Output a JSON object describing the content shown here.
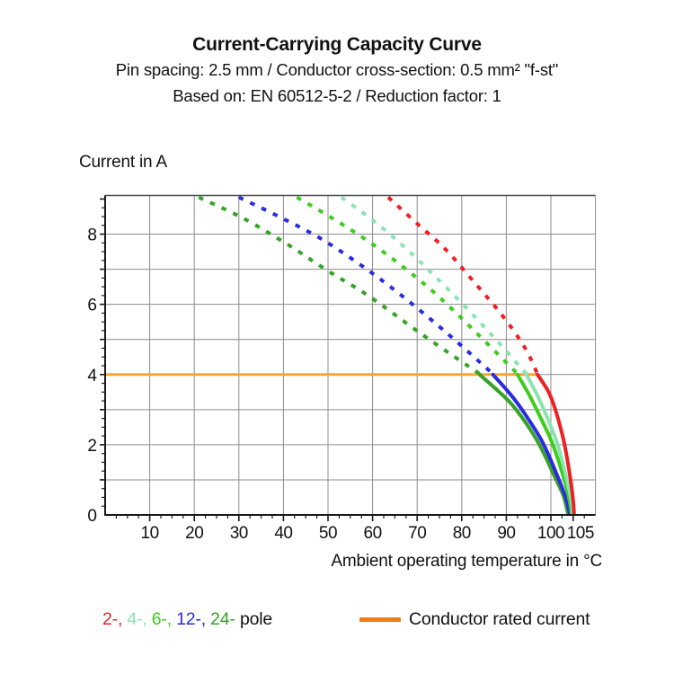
{
  "title": {
    "line1": "Current-Carrying Capacity Curve",
    "line2": "Pin spacing: 2.5 mm / Conductor cross-section: 0.5 mm² \"f-st\"",
    "line3": "Based on: EN 60512-5-2 / Reduction factor: 1"
  },
  "legend": {
    "poles": [
      {
        "label": "2-",
        "color": "#ED2024"
      },
      {
        "label": "4-",
        "color": "#8BE3B2"
      },
      {
        "label": "6-",
        "color": "#3ECC1F"
      },
      {
        "label": "12-",
        "color": "#2B2BE0"
      },
      {
        "label": "24-",
        "color": "#36A228"
      }
    ],
    "separator": ", ",
    "suffix": " pole",
    "rated_label": "Conductor rated current",
    "rated_swatch_color": "#EE7D1A"
  },
  "chart_data": {
    "type": "line",
    "title": "Current-Carrying Capacity Curve",
    "xlabel": "Ambient operating temperature in °C",
    "ylabel": "Current in A",
    "xlim": [
      0,
      110
    ],
    "ylim": [
      0,
      9.1
    ],
    "grid": true,
    "grid_color": "#8C8C8C",
    "axis_color": "#1A1A1A",
    "x_major_ticks": [
      10,
      20,
      30,
      40,
      50,
      60,
      70,
      80,
      90,
      100,
      105
    ],
    "x_minor_step": 2.5,
    "x_gridline_step": 10,
    "y_labeled_ticks": [
      0,
      2,
      4,
      6,
      8
    ],
    "y_minor_step": 0.25,
    "y_gridline_step": 1,
    "rated_line": {
      "y": 4,
      "x_start": 0,
      "x_end": 97,
      "color": "#FCA42D",
      "name": "Conductor rated current"
    },
    "series": [
      {
        "name": "24-pole",
        "poles": 24,
        "color": "#36A228",
        "dashed_points": [
          [
            21,
            9.05
          ],
          [
            31,
            8.45
          ],
          [
            41,
            7.7
          ],
          [
            50,
            6.95
          ],
          [
            59,
            6.25
          ],
          [
            71,
            5.15
          ],
          [
            84,
            4.02
          ]
        ],
        "solid_points": [
          [
            84,
            4.0
          ],
          [
            88,
            3.55
          ],
          [
            91.9,
            3.05
          ],
          [
            97,
            2.1
          ],
          [
            100.8,
            1.1
          ],
          [
            102.8,
            0.55
          ],
          [
            103.8,
            0.05
          ]
        ]
      },
      {
        "name": "12-pole",
        "poles": 12,
        "color": "#2B2BE0",
        "dashed_points": [
          [
            30,
            9.05
          ],
          [
            39,
            8.5
          ],
          [
            48,
            7.9
          ],
          [
            57,
            7.15
          ],
          [
            66,
            6.3
          ],
          [
            76.5,
            5.2
          ],
          [
            87,
            4.02
          ]
        ],
        "solid_points": [
          [
            87,
            4.0
          ],
          [
            90.5,
            3.5
          ],
          [
            93.5,
            3.0
          ],
          [
            98,
            2.1
          ],
          [
            101.5,
            1.1
          ],
          [
            103.3,
            0.5
          ],
          [
            104.2,
            0.05
          ]
        ]
      },
      {
        "name": "6-pole",
        "poles": 6,
        "color": "#3ECC1F",
        "dashed_points": [
          [
            43,
            9.05
          ],
          [
            51,
            8.45
          ],
          [
            59,
            7.8
          ],
          [
            67,
            7.05
          ],
          [
            75,
            6.2
          ],
          [
            84,
            5.1
          ],
          [
            92.5,
            4.02
          ]
        ],
        "solid_points": [
          [
            92.5,
            4.0
          ],
          [
            95,
            3.45
          ],
          [
            97,
            2.95
          ],
          [
            100.3,
            2.05
          ],
          [
            102.9,
            1.05
          ],
          [
            104.2,
            0.4
          ],
          [
            104.6,
            0.05
          ]
        ]
      },
      {
        "name": "4-pole",
        "poles": 4,
        "color": "#8BE3B2",
        "dashed_points": [
          [
            53,
            9.05
          ],
          [
            60,
            8.4
          ],
          [
            67,
            7.65
          ],
          [
            74,
            6.8
          ],
          [
            81,
            5.9
          ],
          [
            88,
            4.95
          ],
          [
            94.5,
            4.02
          ]
        ],
        "solid_points": [
          [
            94.5,
            4.0
          ],
          [
            96.8,
            3.45
          ],
          [
            98.6,
            2.95
          ],
          [
            101.4,
            2.05
          ],
          [
            103.5,
            1.05
          ],
          [
            104.6,
            0.4
          ],
          [
            104.9,
            0.05
          ]
        ]
      },
      {
        "name": "2-pole",
        "poles": 2,
        "color": "#ED2024",
        "dashed_points": [
          [
            63.5,
            9.05
          ],
          [
            70,
            8.3
          ],
          [
            76.5,
            7.55
          ],
          [
            83,
            6.6
          ],
          [
            89,
            5.7
          ],
          [
            94,
            4.8
          ],
          [
            97,
            4.02
          ]
        ],
        "solid_points": [
          [
            97,
            4.0
          ],
          [
            99.5,
            3.5
          ],
          [
            101,
            3.0
          ],
          [
            102.9,
            2.1
          ],
          [
            104.3,
            1.1
          ],
          [
            105,
            0.4
          ],
          [
            105.2,
            0.05
          ]
        ]
      }
    ]
  }
}
